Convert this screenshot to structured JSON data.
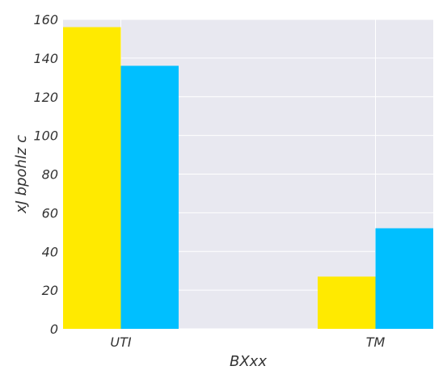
{
  "chart_data": {
    "type": "bar",
    "categories": [
      "UTI",
      "TM"
    ],
    "series": [
      {
        "values": [
          156,
          27
        ]
      },
      {
        "values": [
          136,
          52
        ]
      }
    ],
    "xlabel": "BXxx",
    "ylabel": "xJ bpohlz c",
    "ylim": [
      0,
      160
    ],
    "yticks": [
      0,
      20,
      40,
      60,
      80,
      100,
      120,
      140,
      160
    ],
    "grid": true,
    "legend": "none",
    "colors": {
      "series": [
        "#ffea00",
        "#00bfff"
      ],
      "plot_background": "#e8e8f0",
      "grid": "#ffffff"
    }
  }
}
